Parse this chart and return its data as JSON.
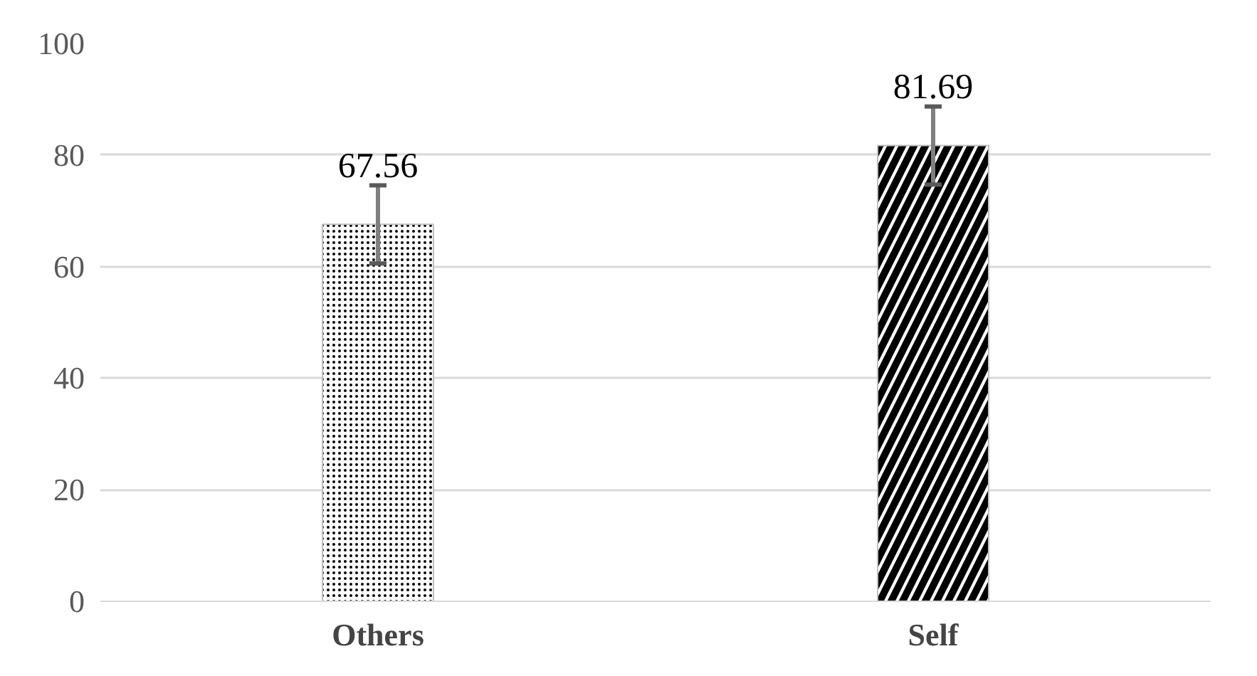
{
  "chart_data": {
    "type": "bar",
    "categories": [
      "Others",
      "Self"
    ],
    "values": [
      67.56,
      81.69
    ],
    "errors": [
      7,
      7
    ],
    "colors": [
      "#ffffff",
      "#ffffff"
    ],
    "data_labels": true,
    "ylim": [
      0,
      100
    ],
    "yticks": [
      0,
      20,
      40,
      60,
      80,
      100
    ],
    "grid": "y"
  }
}
